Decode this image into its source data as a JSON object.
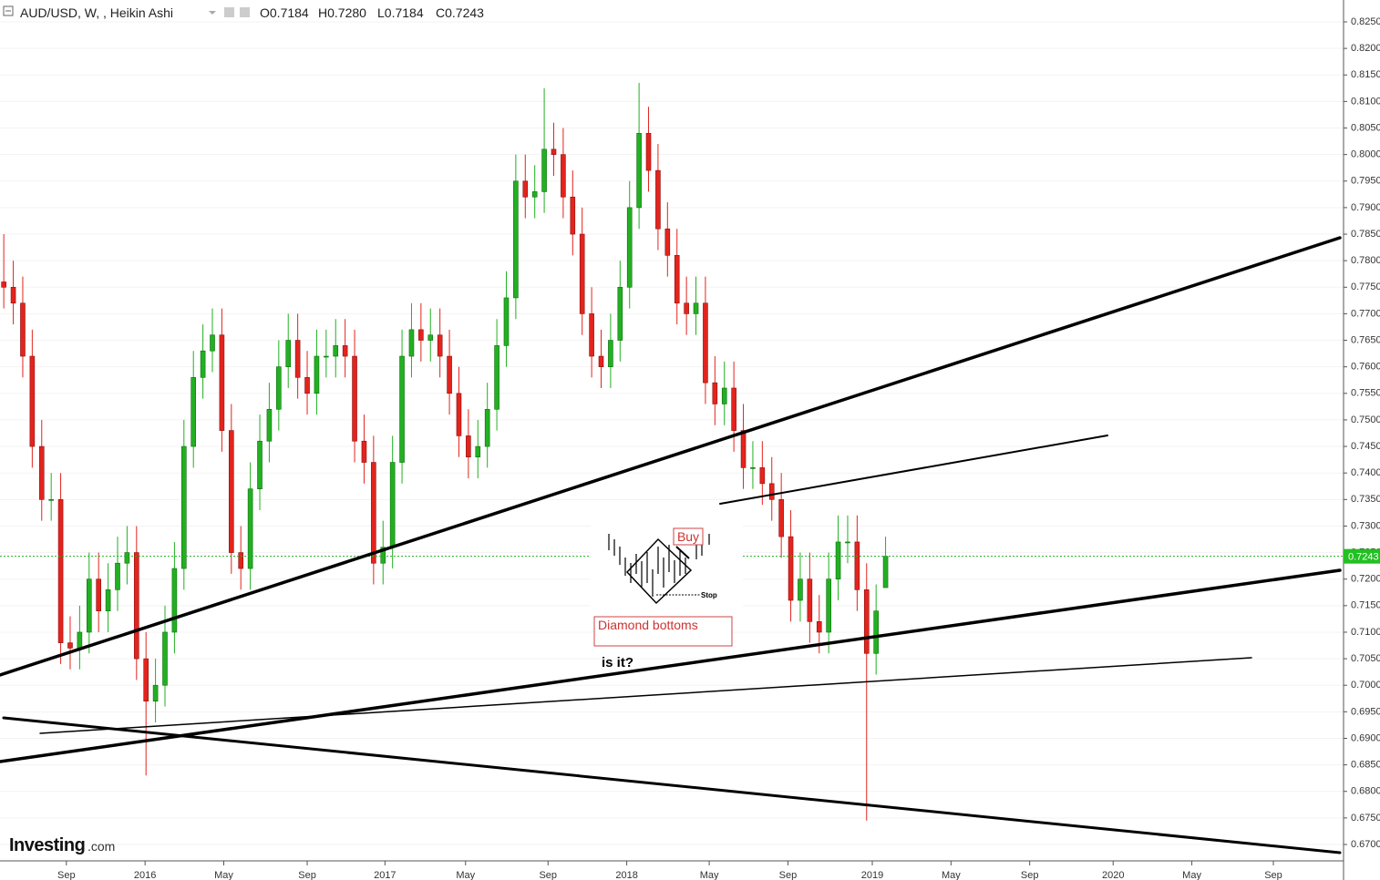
{
  "header": {
    "symbol": "AUD/USD, W, , Heikin Ashi",
    "ohlc": [
      "O0.7184",
      "H0.7280",
      "L0.7184",
      "C0.7243"
    ]
  },
  "chart_data": {
    "type": "candlestick",
    "up_color": "#22b022",
    "down_color": "#e3241d",
    "open": [
      0.776,
      0.775,
      0.772,
      0.762,
      0.745,
      0.735,
      0.735,
      0.708,
      0.707,
      0.71,
      0.72,
      0.714,
      0.718,
      0.723,
      0.725,
      0.705,
      0.697,
      0.7,
      0.71,
      0.722,
      0.745,
      0.758,
      0.763,
      0.766,
      0.748,
      0.725,
      0.722,
      0.737,
      0.746,
      0.752,
      0.76,
      0.765,
      0.758,
      0.755,
      0.762,
      0.762,
      0.764,
      0.762,
      0.746,
      0.742,
      0.723,
      0.726,
      0.742,
      0.762,
      0.767,
      0.765,
      0.766,
      0.762,
      0.755,
      0.747,
      0.743,
      0.745,
      0.752,
      0.764,
      0.773,
      0.795,
      0.792,
      0.793,
      0.801,
      0.8,
      0.792,
      0.785,
      0.77,
      0.762,
      0.76,
      0.765,
      0.775,
      0.79,
      0.804,
      0.797,
      0.786,
      0.781,
      0.772,
      0.77,
      0.772,
      0.757,
      0.753,
      0.756,
      0.748,
      0.741,
      0.741,
      0.738,
      0.735,
      0.728,
      0.716,
      0.72,
      0.712,
      0.71,
      0.72,
      0.727,
      0.727,
      0.718,
      0.706,
      0.7184
    ],
    "high": [
      0.785,
      0.78,
      0.777,
      0.767,
      0.75,
      0.74,
      0.74,
      0.713,
      0.715,
      0.725,
      0.725,
      0.723,
      0.728,
      0.73,
      0.73,
      0.71,
      0.705,
      0.715,
      0.727,
      0.75,
      0.763,
      0.768,
      0.771,
      0.771,
      0.753,
      0.73,
      0.742,
      0.751,
      0.757,
      0.765,
      0.77,
      0.77,
      0.763,
      0.767,
      0.767,
      0.769,
      0.769,
      0.767,
      0.751,
      0.747,
      0.731,
      0.747,
      0.767,
      0.772,
      0.772,
      0.771,
      0.771,
      0.767,
      0.76,
      0.752,
      0.75,
      0.757,
      0.769,
      0.778,
      0.8,
      0.8,
      0.798,
      0.8125,
      0.806,
      0.805,
      0.797,
      0.79,
      0.775,
      0.767,
      0.77,
      0.78,
      0.795,
      0.8135,
      0.809,
      0.802,
      0.791,
      0.786,
      0.777,
      0.777,
      0.777,
      0.762,
      0.761,
      0.761,
      0.753,
      0.746,
      0.746,
      0.743,
      0.74,
      0.733,
      0.725,
      0.725,
      0.717,
      0.725,
      0.732,
      0.732,
      0.732,
      0.723,
      0.719,
      0.728
    ],
    "low": [
      0.771,
      0.768,
      0.758,
      0.741,
      0.731,
      0.731,
      0.704,
      0.703,
      0.703,
      0.706,
      0.71,
      0.71,
      0.714,
      0.719,
      0.701,
      0.683,
      0.693,
      0.696,
      0.706,
      0.718,
      0.741,
      0.754,
      0.759,
      0.744,
      0.721,
      0.718,
      0.718,
      0.733,
      0.742,
      0.748,
      0.756,
      0.754,
      0.751,
      0.751,
      0.758,
      0.758,
      0.758,
      0.742,
      0.738,
      0.719,
      0.719,
      0.722,
      0.738,
      0.758,
      0.761,
      0.761,
      0.758,
      0.751,
      0.743,
      0.739,
      0.739,
      0.741,
      0.748,
      0.76,
      0.769,
      0.788,
      0.788,
      0.789,
      0.796,
      0.788,
      0.781,
      0.766,
      0.758,
      0.756,
      0.756,
      0.761,
      0.771,
      0.786,
      0.793,
      0.782,
      0.777,
      0.768,
      0.766,
      0.766,
      0.753,
      0.749,
      0.749,
      0.744,
      0.737,
      0.737,
      0.734,
      0.731,
      0.724,
      0.712,
      0.712,
      0.708,
      0.706,
      0.706,
      0.716,
      0.723,
      0.714,
      0.6745,
      0.702,
      0.7184
    ],
    "close": [
      0.775,
      0.772,
      0.762,
      0.745,
      0.735,
      0.735,
      0.708,
      0.707,
      0.71,
      0.72,
      0.714,
      0.718,
      0.723,
      0.725,
      0.705,
      0.697,
      0.7,
      0.71,
      0.722,
      0.745,
      0.758,
      0.763,
      0.766,
      0.748,
      0.725,
      0.722,
      0.737,
      0.746,
      0.752,
      0.76,
      0.765,
      0.758,
      0.755,
      0.762,
      0.762,
      0.764,
      0.762,
      0.746,
      0.742,
      0.723,
      0.726,
      0.742,
      0.762,
      0.767,
      0.765,
      0.766,
      0.762,
      0.755,
      0.747,
      0.743,
      0.745,
      0.752,
      0.764,
      0.773,
      0.795,
      0.792,
      0.793,
      0.801,
      0.8,
      0.792,
      0.785,
      0.77,
      0.762,
      0.76,
      0.765,
      0.775,
      0.79,
      0.804,
      0.797,
      0.786,
      0.781,
      0.772,
      0.77,
      0.772,
      0.757,
      0.753,
      0.756,
      0.748,
      0.741,
      0.741,
      0.738,
      0.735,
      0.728,
      0.716,
      0.72,
      0.712,
      0.71,
      0.72,
      0.727,
      0.727,
      0.718,
      0.706,
      0.714,
      0.7243
    ],
    "xlim": [
      -0.4,
      141.3
    ],
    "xticks": [
      {
        "value": 6.6,
        "label": "Sep"
      },
      {
        "value": 14.9,
        "label": "2016"
      },
      {
        "value": 23.2,
        "label": "May"
      },
      {
        "value": 32.0,
        "label": "Sep"
      },
      {
        "value": 40.2,
        "label": "2017"
      },
      {
        "value": 48.7,
        "label": "May"
      },
      {
        "value": 57.4,
        "label": "Sep"
      },
      {
        "value": 65.7,
        "label": "2018"
      },
      {
        "value": 74.4,
        "label": "May"
      },
      {
        "value": 82.7,
        "label": "Sep"
      },
      {
        "value": 91.6,
        "label": "2019"
      },
      {
        "value": 99.9,
        "label": "May"
      },
      {
        "value": 108.2,
        "label": "Sep"
      },
      {
        "value": 117.0,
        "label": "2020"
      },
      {
        "value": 125.3,
        "label": "May"
      },
      {
        "value": 133.9,
        "label": "Sep"
      }
    ],
    "ylim": [
      0.67,
      0.825
    ],
    "yticks": [
      {
        "value": 0.67,
        "label": "0.6700"
      },
      {
        "value": 0.675,
        "label": "0.6750"
      },
      {
        "value": 0.68,
        "label": "0.6800"
      },
      {
        "value": 0.685,
        "label": "0.6850"
      },
      {
        "value": 0.69,
        "label": "0.6900"
      },
      {
        "value": 0.695,
        "label": "0.6950"
      },
      {
        "value": 0.7,
        "label": "0.7000"
      },
      {
        "value": 0.705,
        "label": "0.7050"
      },
      {
        "value": 0.71,
        "label": "0.7100"
      },
      {
        "value": 0.715,
        "label": "0.7150"
      },
      {
        "value": 0.72,
        "label": "0.7200"
      },
      {
        "value": 0.725,
        "label": "0.7250"
      },
      {
        "value": 0.73,
        "label": "0.7300"
      },
      {
        "value": 0.735,
        "label": "0.7350"
      },
      {
        "value": 0.74,
        "label": "0.7400"
      },
      {
        "value": 0.745,
        "label": "0.7450"
      },
      {
        "value": 0.75,
        "label": "0.7500"
      },
      {
        "value": 0.755,
        "label": "0.7550"
      },
      {
        "value": 0.76,
        "label": "0.7600"
      },
      {
        "value": 0.765,
        "label": "0.7650"
      },
      {
        "value": 0.77,
        "label": "0.7700"
      },
      {
        "value": 0.775,
        "label": "0.7750"
      },
      {
        "value": 0.78,
        "label": "0.7800"
      },
      {
        "value": 0.785,
        "label": "0.7850"
      },
      {
        "value": 0.79,
        "label": "0.7900"
      },
      {
        "value": 0.795,
        "label": "0.7950"
      },
      {
        "value": 0.8,
        "label": "0.8000"
      },
      {
        "value": 0.805,
        "label": "0.8050"
      },
      {
        "value": 0.81,
        "label": "0.8100"
      },
      {
        "value": 0.815,
        "label": "0.8150"
      },
      {
        "value": 0.82,
        "label": "0.8200"
      },
      {
        "value": 0.825,
        "label": "0.8250"
      }
    ],
    "last_price": {
      "value": 0.7243,
      "label": "0.7243"
    },
    "annotations": {
      "buy": "Buy",
      "stop": "Stop",
      "pattern": "Diamond bottoms",
      "question": "is it?"
    }
  },
  "brand": {
    "name": "Investing",
    "suffix": ".com"
  }
}
